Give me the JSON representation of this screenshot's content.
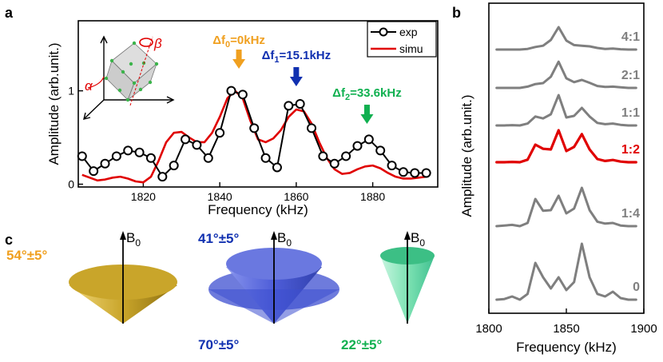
{
  "panel_labels": {
    "a": "a",
    "b": "b",
    "c": "c"
  },
  "colors": {
    "exp": "#000000",
    "simu": "#e00000",
    "orange": "#f0a020",
    "blue": "#1030b0",
    "green": "#10b050",
    "gray": "#7f7f7f",
    "red": "#e00000",
    "gold": "#c9a52a",
    "cone_blue": "#4a5ad8",
    "cone_green": "#40d090"
  },
  "chart_data": [
    {
      "type": "line",
      "panel": "a",
      "xlabel": "Frequency (kHz)",
      "ylabel": "Amplitude (arb.unit.)",
      "xlim": [
        1803,
        1897
      ],
      "ylim": [
        -0.03,
        1.75
      ],
      "xticks": [
        1820,
        1840,
        1860,
        1880
      ],
      "xtick_labels": [
        "1820",
        "1840",
        "1860",
        "1880"
      ],
      "yticks": [
        0,
        1
      ],
      "ytick_labels": [
        "0",
        "1"
      ],
      "legend": {
        "position": "top-right",
        "entries": [
          "exp",
          "simu"
        ]
      },
      "series": [
        {
          "name": "exp",
          "style": "line+open-circle",
          "x": [
            1804,
            1807,
            1810,
            1813,
            1816,
            1819,
            1822,
            1825,
            1828,
            1831,
            1834,
            1837,
            1840,
            1843,
            1846,
            1849,
            1852,
            1855,
            1858,
            1861,
            1864,
            1867,
            1870,
            1873,
            1876,
            1879,
            1882,
            1885,
            1888,
            1891,
            1894
          ],
          "y": [
            0.3,
            0.14,
            0.22,
            0.3,
            0.36,
            0.34,
            0.28,
            0.08,
            0.2,
            0.48,
            0.42,
            0.28,
            0.55,
            1.0,
            0.96,
            0.6,
            0.28,
            0.18,
            0.84,
            0.86,
            0.6,
            0.3,
            0.22,
            0.3,
            0.41,
            0.48,
            0.36,
            0.2,
            0.13,
            0.12,
            0.12
          ]
        },
        {
          "name": "simu",
          "style": "line",
          "x": [
            1804,
            1806,
            1808,
            1810,
            1812,
            1814,
            1816,
            1818,
            1820,
            1822,
            1824,
            1826,
            1828,
            1830,
            1832,
            1834,
            1836,
            1838,
            1840,
            1842,
            1844,
            1846,
            1848,
            1850,
            1852,
            1854,
            1856,
            1858,
            1860,
            1862,
            1864,
            1866,
            1868,
            1870,
            1872,
            1874,
            1876,
            1878,
            1880,
            1882,
            1884,
            1886,
            1888,
            1890,
            1892,
            1894
          ],
          "y": [
            0.1,
            0.07,
            0.04,
            0.05,
            0.07,
            0.08,
            0.06,
            0.03,
            0.02,
            0.08,
            0.25,
            0.45,
            0.55,
            0.56,
            0.5,
            0.45,
            0.45,
            0.55,
            0.72,
            0.92,
            1.0,
            0.92,
            0.68,
            0.48,
            0.45,
            0.49,
            0.58,
            0.72,
            0.8,
            0.78,
            0.65,
            0.45,
            0.28,
            0.16,
            0.11,
            0.12,
            0.16,
            0.19,
            0.2,
            0.17,
            0.12,
            0.08,
            0.06,
            0.06,
            0.07,
            0.08
          ]
        }
      ],
      "annotations": [
        {
          "label": "Δf",
          "sub": "0",
          "value": "=0kHz",
          "x": 1845,
          "color_key": "orange"
        },
        {
          "label": "Δf",
          "sub": "1",
          "value": "=15.1kHz",
          "x": 1860,
          "color_key": "blue"
        },
        {
          "label": "Δf",
          "sub": "2",
          "value": "=33.6kHz",
          "x": 1878.5,
          "color_key": "green"
        }
      ],
      "inset": {
        "alpha": "α",
        "beta": "β"
      }
    },
    {
      "type": "line",
      "panel": "b",
      "xlabel": "Frequency (kHz)",
      "ylabel": "Amplitude (arb.unit.)",
      "xlim": [
        1800,
        1900
      ],
      "xticks": [
        1800,
        1850,
        1900
      ],
      "xtick_labels": [
        "1800",
        "1850",
        "1900"
      ],
      "x": [
        1805,
        1810,
        1815,
        1820,
        1825,
        1830,
        1835,
        1840,
        1845,
        1850,
        1855,
        1860,
        1865,
        1870,
        1875,
        1880,
        1885,
        1890,
        1895
      ],
      "series": [
        {
          "name": "4:1",
          "highlight": false,
          "values": [
            0.0,
            0.0,
            0.0,
            0.0,
            0.02,
            0.08,
            0.12,
            0.3,
            0.7,
            0.28,
            0.14,
            0.12,
            0.1,
            0.05,
            0.02,
            0.03,
            0.01,
            0.0,
            0.0
          ]
        },
        {
          "name": "2:1",
          "highlight": false,
          "values": [
            0.0,
            0.0,
            0.0,
            0.0,
            0.04,
            0.12,
            0.15,
            0.35,
            0.82,
            0.3,
            0.18,
            0.25,
            0.16,
            0.06,
            0.03,
            0.04,
            0.02,
            0.0,
            0.0
          ]
        },
        {
          "name": "1:1",
          "highlight": false,
          "values": [
            0.0,
            0.0,
            0.01,
            0.0,
            0.06,
            0.28,
            0.22,
            0.35,
            0.95,
            0.25,
            0.3,
            0.55,
            0.28,
            0.08,
            0.04,
            0.06,
            0.02,
            0.0,
            0.0
          ]
        },
        {
          "name": "1:2",
          "highlight": true,
          "values": [
            0.0,
            0.0,
            0.01,
            0.0,
            0.08,
            0.55,
            0.42,
            0.4,
            1.0,
            0.35,
            0.48,
            0.88,
            0.4,
            0.1,
            0.04,
            0.07,
            0.02,
            0.0,
            0.0
          ]
        },
        {
          "name": "1:4",
          "highlight": false,
          "values": [
            0.0,
            0.02,
            0.04,
            0.0,
            0.1,
            0.85,
            0.48,
            0.5,
            0.95,
            0.4,
            0.55,
            1.2,
            0.5,
            0.14,
            0.08,
            0.1,
            0.02,
            0.0,
            0.0
          ]
        },
        {
          "name": "0",
          "highlight": false,
          "values": [
            0.0,
            0.02,
            0.1,
            0.0,
            0.18,
            1.15,
            0.7,
            0.35,
            0.7,
            0.3,
            0.55,
            1.75,
            0.7,
            0.18,
            0.1,
            0.25,
            0.05,
            0.0,
            0.0
          ]
        }
      ]
    }
  ],
  "panel_c": {
    "b0_label": "B",
    "b0_sub": "0",
    "cones": [
      {
        "angle_label": "54°±5°",
        "color_key": "orange"
      },
      {
        "angle_label": "41°±5°",
        "color_key": "blue"
      },
      {
        "angle_label": "70°±5°",
        "color_key": "blue"
      },
      {
        "angle_label": "22°±5°",
        "color_key": "green"
      }
    ]
  }
}
